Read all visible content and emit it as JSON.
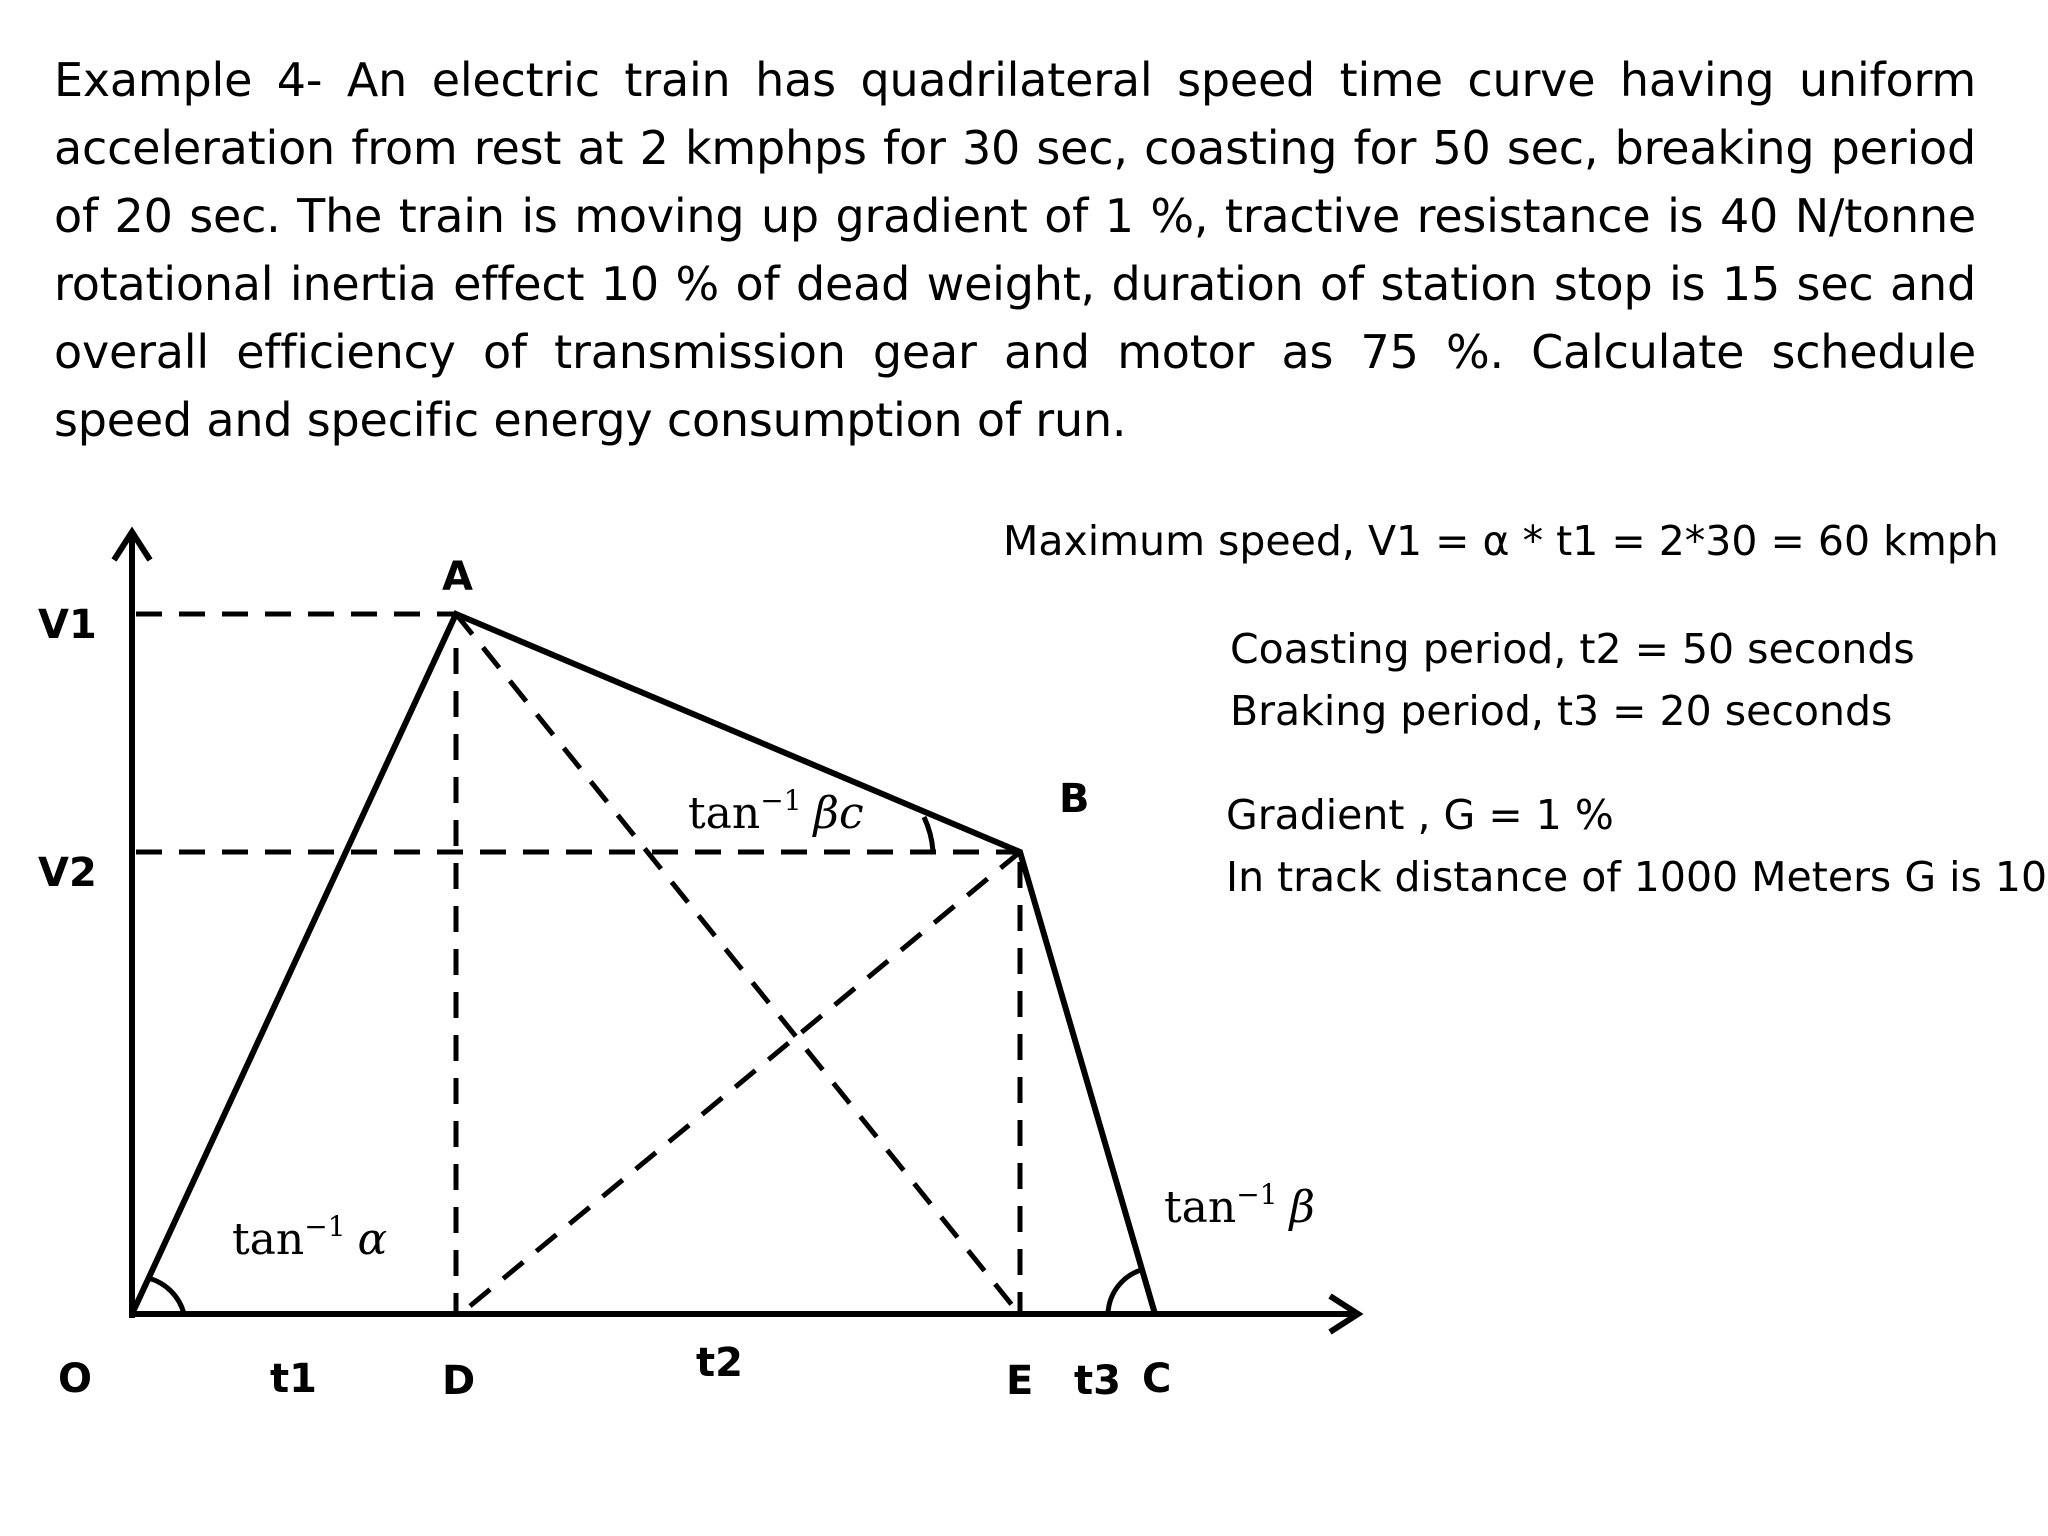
{
  "problem": {
    "text": "Example 4- An electric train has quadrilateral speed time curve having uniform acceleration from rest at 2 kmphps for 30 sec, coasting for 50 sec, breaking period of 20 sec. The train is moving up gradient of 1 %, tractive resistance is 40 N/tonne rotational inertia effect 10 % of dead weight, duration of station stop is 15 sec and overall efficiency of transmission gear and motor as 75 %. Calculate schedule speed and specific energy consumption of run."
  },
  "notes": {
    "max_speed": "Maximum speed, V1 = α * t1 = 2*30 = 60 kmph",
    "coasting": "Coasting period, t2 = 50 seconds",
    "braking": "Braking period, t3 = 20 seconds",
    "gradient": "Gradient , G = 1 %",
    "track": "In track distance of 1000 Meters G is 10"
  },
  "diagram": {
    "points": {
      "A": "A",
      "B": "B",
      "C": "C",
      "D": "D",
      "E": "E",
      "O": "O"
    },
    "axis_labels": {
      "v1": "V1",
      "v2": "V2",
      "t1": "t1",
      "t2": "t2",
      "t3": "t3"
    },
    "angles": {
      "alpha": {
        "fn": "tan",
        "exp": "−1",
        "sym": "α"
      },
      "beta_c": {
        "fn": "tan",
        "exp": "−1",
        "sym": "βc"
      },
      "beta": {
        "fn": "tan",
        "exp": "−1",
        "sym": "β"
      }
    }
  }
}
